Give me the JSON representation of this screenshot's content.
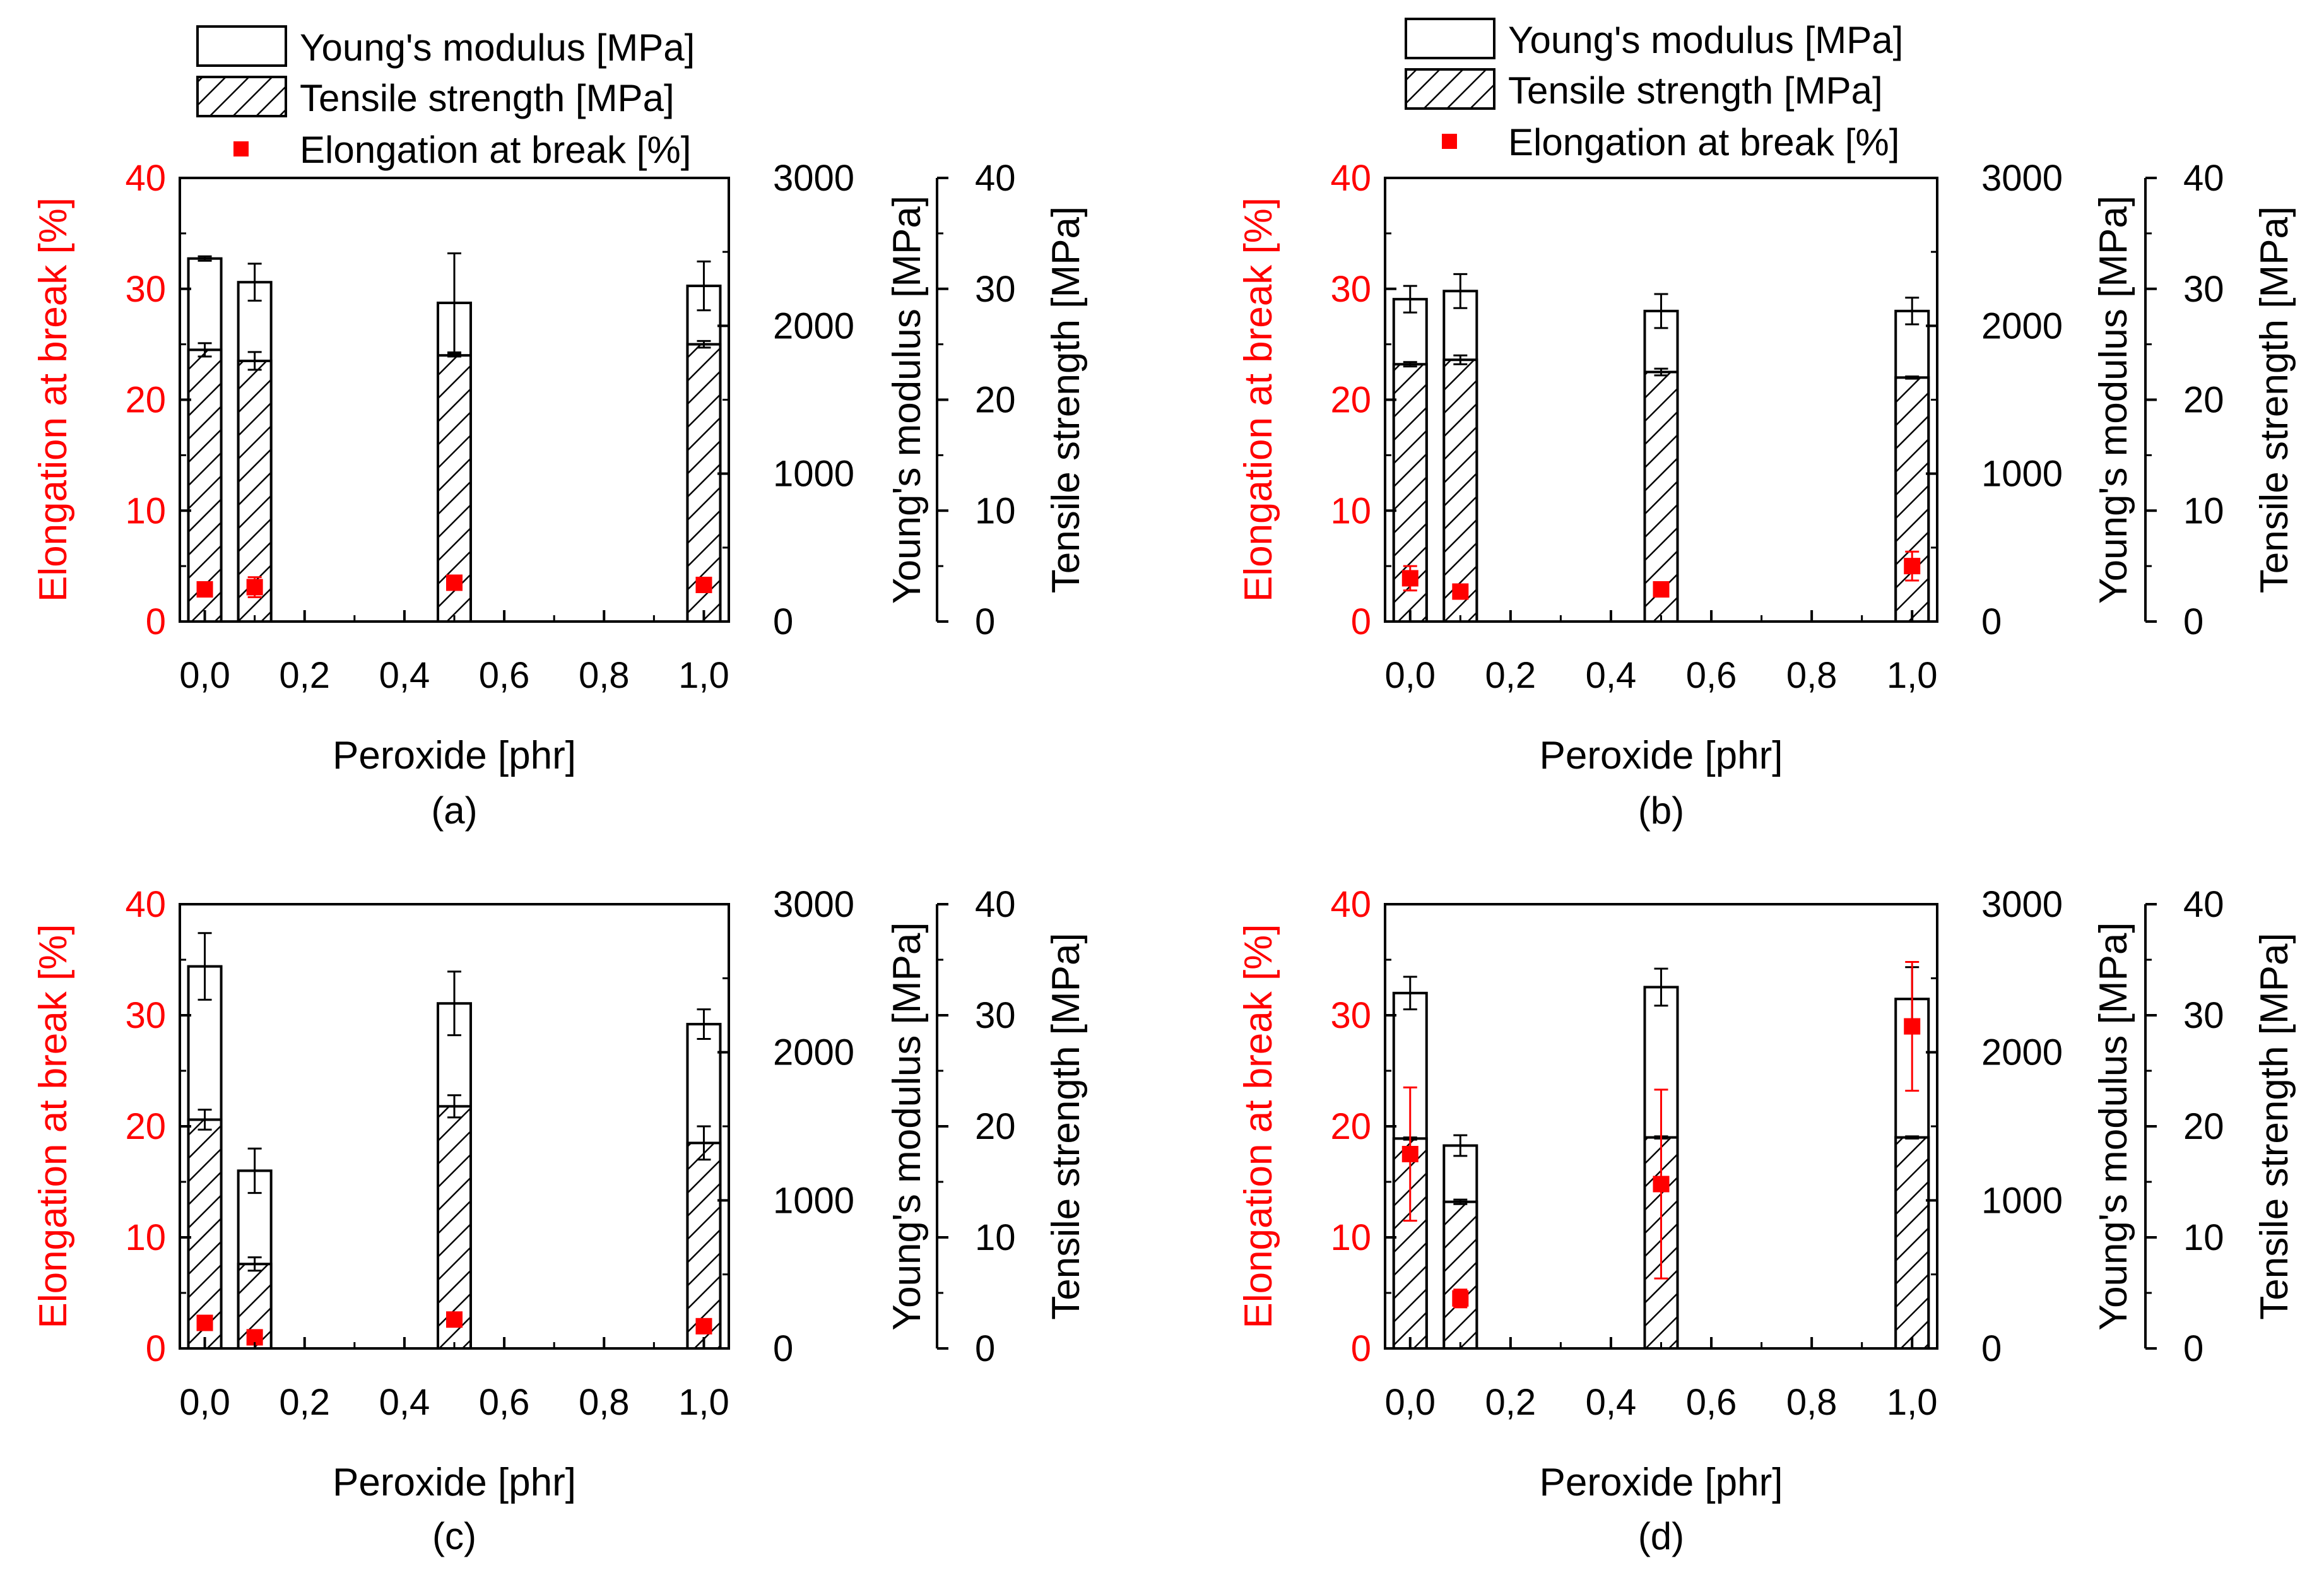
{
  "legend": {
    "youngs": "Young's modulus [MPa]",
    "tensile": "Tensile strength [MPa]",
    "elongation": "Elongation at break [%]"
  },
  "colors": {
    "elongation": "#ff0000",
    "axis": "#000000",
    "bar_fill": "#ffffff"
  },
  "chart_data": [
    {
      "type": "bar",
      "panel_label": "(a)",
      "xlabel": "Peroxide [phr]",
      "ylabel_left": "Elongation at break [%]",
      "ylabel_right1": "Young's modulus [MPa]",
      "ylabel_right2": "Tensile strength [MPa]",
      "x_ticks": [
        "0,0",
        "0,2",
        "0,4",
        "0,6",
        "0,8",
        "1,0"
      ],
      "left_ticks": [
        "0",
        "10",
        "20",
        "30",
        "40"
      ],
      "right1_ticks": [
        "0",
        "1000",
        "2000",
        "3000"
      ],
      "right2_ticks": [
        "0",
        "10",
        "20",
        "30",
        "40"
      ],
      "xlim": [
        -0.05,
        1.05
      ],
      "ylim_elongation": [
        0,
        40
      ],
      "ylim_youngs": [
        0,
        3000
      ],
      "ylim_tensile": [
        0,
        40
      ],
      "x": [
        0.0,
        0.1,
        0.5,
        1.0
      ],
      "series": [
        {
          "name": "Young's modulus [MPa]",
          "values": [
            2455,
            2295,
            2155,
            2270
          ],
          "errors": [
            15,
            125,
            335,
            165
          ]
        },
        {
          "name": "Tensile strength [MPa]",
          "values": [
            24.5,
            23.5,
            24.0,
            25.0
          ],
          "errors": [
            0.6,
            0.8,
            0.1,
            0.3
          ]
        },
        {
          "name": "Elongation at break [%]",
          "values": [
            2.9,
            3.1,
            3.5,
            3.3
          ],
          "errors": [
            0.3,
            0.9,
            0.4,
            0.3
          ]
        }
      ]
    },
    {
      "type": "bar",
      "panel_label": "(b)",
      "xlabel": "Peroxide [phr]",
      "ylabel_left": "Elongation at break [%]",
      "ylabel_right1": "Young's modulus [MPa]",
      "ylabel_right2": "Tensile strength [MPa]",
      "x_ticks": [
        "0,0",
        "0,2",
        "0,4",
        "0,6",
        "0,8",
        "1,0"
      ],
      "left_ticks": [
        "0",
        "10",
        "20",
        "30",
        "40"
      ],
      "right1_ticks": [
        "0",
        "1000",
        "2000",
        "3000"
      ],
      "right2_ticks": [
        "0",
        "10",
        "20",
        "30",
        "40"
      ],
      "xlim": [
        -0.05,
        1.05
      ],
      "ylim_elongation": [
        0,
        40
      ],
      "ylim_youngs": [
        0,
        3000
      ],
      "ylim_tensile": [
        0,
        40
      ],
      "x": [
        0.0,
        0.1,
        0.5,
        1.0
      ],
      "series": [
        {
          "name": "Young's modulus [MPa]",
          "values": [
            2180,
            2235,
            2100,
            2100
          ],
          "errors": [
            90,
            115,
            115,
            90
          ]
        },
        {
          "name": "Tensile strength [MPa]",
          "values": [
            23.2,
            23.6,
            22.5,
            22.0
          ],
          "errors": [
            0.2,
            0.4,
            0.3,
            0.1
          ]
        },
        {
          "name": "Elongation at break [%]",
          "values": [
            3.9,
            2.7,
            2.9,
            5.0
          ],
          "errors": [
            1.1,
            0.5,
            0.6,
            1.3
          ]
        }
      ]
    },
    {
      "type": "bar",
      "panel_label": "(c)",
      "xlabel": "Peroxide [phr]",
      "ylabel_left": "Elongation at break [%]",
      "ylabel_right1": "Young's modulus [MPa]",
      "ylabel_right2": "Tensile strength [MPa]",
      "x_ticks": [
        "0,0",
        "0,2",
        "0,4",
        "0,6",
        "0,8",
        "1,0"
      ],
      "left_ticks": [
        "0",
        "10",
        "20",
        "30",
        "40"
      ],
      "right1_ticks": [
        "0",
        "1000",
        "2000",
        "3000"
      ],
      "right2_ticks": [
        "0",
        "10",
        "20",
        "30",
        "40"
      ],
      "xlim": [
        -0.05,
        1.05
      ],
      "ylim_elongation": [
        0,
        40
      ],
      "ylim_youngs": [
        0,
        3000
      ],
      "ylim_tensile": [
        0,
        40
      ],
      "x": [
        0.0,
        0.1,
        0.5,
        1.0
      ],
      "series": [
        {
          "name": "Young's modulus [MPa]",
          "values": [
            2580,
            1200,
            2330,
            2190
          ],
          "errors": [
            225,
            150,
            215,
            100
          ]
        },
        {
          "name": "Tensile strength [MPa]",
          "values": [
            20.6,
            7.6,
            21.8,
            18.5
          ],
          "errors": [
            0.9,
            0.6,
            1.0,
            1.5
          ]
        },
        {
          "name": "Elongation at break [%]",
          "values": [
            2.3,
            1.0,
            2.6,
            2.0
          ],
          "errors": [
            0.5,
            0.3,
            0.5,
            0.4
          ]
        }
      ]
    },
    {
      "type": "bar",
      "panel_label": "(d)",
      "xlabel": "Peroxide [phr]",
      "ylabel_left": "Elongation at break [%]",
      "ylabel_right1": "Young's modulus [MPa]",
      "ylabel_right2": "Tensile strength [MPa]",
      "x_ticks": [
        "0,0",
        "0,2",
        "0,4",
        "0,6",
        "0,8",
        "1,0"
      ],
      "left_ticks": [
        "0",
        "10",
        "20",
        "30",
        "40"
      ],
      "right1_ticks": [
        "0",
        "1000",
        "2000",
        "3000"
      ],
      "right2_ticks": [
        "0",
        "10",
        "20",
        "30",
        "40"
      ],
      "xlim": [
        -0.05,
        1.05
      ],
      "ylim_elongation": [
        0,
        40
      ],
      "ylim_youngs": [
        0,
        3000
      ],
      "ylim_tensile": [
        0,
        40
      ],
      "x": [
        0.0,
        0.1,
        0.5,
        1.0
      ],
      "series": [
        {
          "name": "Young's modulus [MPa]",
          "values": [
            2400,
            1370,
            2440,
            2360
          ],
          "errors": [
            110,
            70,
            125,
            215
          ]
        },
        {
          "name": "Tensile strength [MPa]",
          "values": [
            18.9,
            13.2,
            19.0,
            19.0
          ],
          "errors": [
            0.1,
            0.2,
            0.1,
            0.1
          ]
        },
        {
          "name": "Elongation at break [%]",
          "values": [
            17.5,
            4.5,
            14.8,
            29.0
          ],
          "errors": [
            6.0,
            0.8,
            8.5,
            5.8
          ]
        }
      ]
    }
  ]
}
